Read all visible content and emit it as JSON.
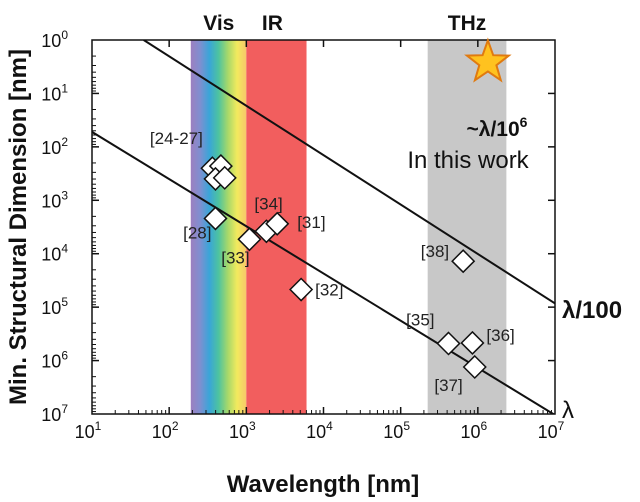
{
  "chart_data": {
    "type": "scatter",
    "xlabel": "Wavelength [nm]",
    "ylabel": "Min. Structural Dimension [nm]",
    "x_log_range": [
      1,
      7
    ],
    "y_log_range": [
      0,
      7
    ],
    "y_axis_inverted": true,
    "x_ticks": [
      {
        "base": "10",
        "exp": "1"
      },
      {
        "base": "10",
        "exp": "2"
      },
      {
        "base": "10",
        "exp": "3"
      },
      {
        "base": "10",
        "exp": "4"
      },
      {
        "base": "10",
        "exp": "5"
      },
      {
        "base": "10",
        "exp": "6"
      },
      {
        "base": "10",
        "exp": "7"
      }
    ],
    "y_ticks": [
      {
        "base": "10",
        "exp": "0"
      },
      {
        "base": "10",
        "exp": "1"
      },
      {
        "base": "10",
        "exp": "2"
      },
      {
        "base": "10",
        "exp": "3"
      },
      {
        "base": "10",
        "exp": "4"
      },
      {
        "base": "10",
        "exp": "5"
      },
      {
        "base": "10",
        "exp": "6"
      },
      {
        "base": "10",
        "exp": "7"
      }
    ],
    "bands": [
      {
        "name": "Vis",
        "log_x_start": 2.28,
        "log_x_end": 3.0
      },
      {
        "name": "IR",
        "log_x_start": 3.0,
        "log_x_end": 3.78
      },
      {
        "name": "THz",
        "log_x_start": 5.35,
        "log_x_end": 6.37
      }
    ],
    "band_colors": {
      "vis": [
        "#9d7fc0",
        "#7f8fd0",
        "#3aa5d8",
        "#4dc3a0",
        "#a6d86a",
        "#f2ea5e",
        "#f7c86a"
      ],
      "ir": "#f25e5e",
      "thz": "#c8c8c8"
    },
    "lines": [
      {
        "name": "λ",
        "label": "λ",
        "bold": false,
        "log_x0": 1,
        "log_y0": 1.72,
        "log_x1": 7,
        "log_y1": 7.02
      },
      {
        "name": "λ/100",
        "label": "λ/100",
        "bold": true,
        "log_x0": 1.67,
        "log_y0": 0,
        "log_x1": 7,
        "log_y1": 4.93
      }
    ],
    "points": [
      {
        "label": "[24-27]",
        "log_x": 2.56,
        "log_y": 2.4
      },
      {
        "label": "",
        "log_x": 2.67,
        "log_y": 2.36
      },
      {
        "label": "",
        "log_x": 2.6,
        "log_y": 2.6
      },
      {
        "label": "",
        "log_x": 2.72,
        "log_y": 2.58
      },
      {
        "label": "[28]",
        "log_x": 2.6,
        "log_y": 3.34
      },
      {
        "label": "[34]",
        "log_x": 3.26,
        "log_y": 3.58
      },
      {
        "label": "[31]",
        "log_x": 3.4,
        "log_y": 3.44
      },
      {
        "label": "[33]",
        "log_x": 3.04,
        "log_y": 3.73
      },
      {
        "label": "[32]",
        "log_x": 3.71,
        "log_y": 4.67
      },
      {
        "label": "[38]",
        "log_x": 5.81,
        "log_y": 4.14
      },
      {
        "label": "[35]",
        "log_x": 5.62,
        "log_y": 5.68
      },
      {
        "label": "[36]",
        "log_x": 5.93,
        "log_y": 5.67
      },
      {
        "label": "[37]",
        "log_x": 5.96,
        "log_y": 6.12
      }
    ],
    "star": {
      "log_x": 6.13,
      "log_y": 0.42,
      "color": "#ffc21f",
      "stroke": "#e07a10"
    },
    "annotation": {
      "line1_base": "~λ/10",
      "line1_exp": "6",
      "line2": "In this work"
    }
  }
}
